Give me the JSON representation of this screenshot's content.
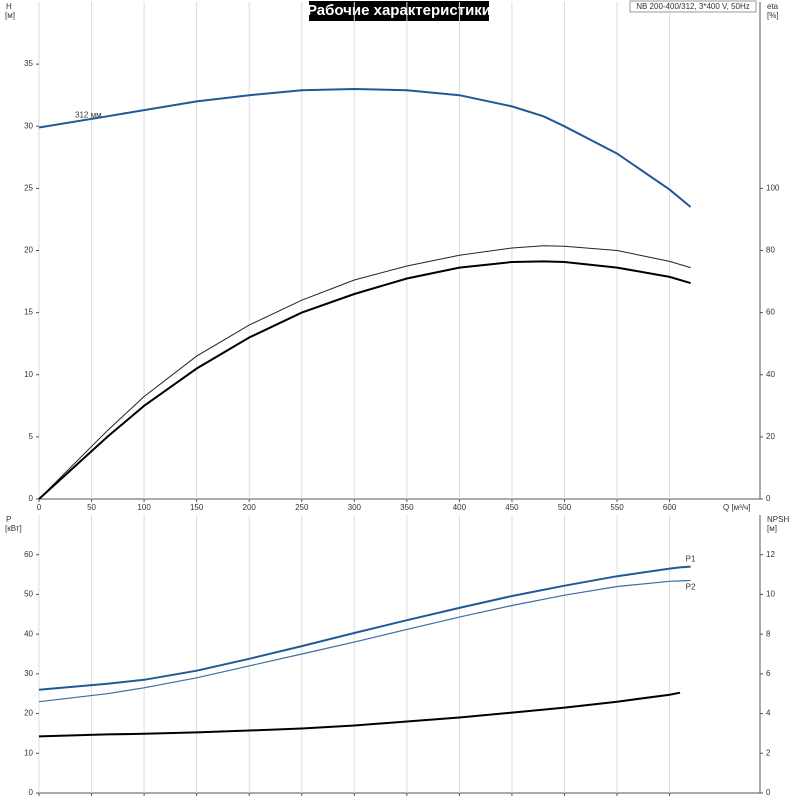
{
  "chart_data": [
    {
      "type": "line",
      "title": "Рабочие характеристики",
      "subtitle": "NB 200-400/312, 3*400 V, 50Hz",
      "xlabel": "Q [м³/ч]",
      "ylabel": "H",
      "yunit": "[м]",
      "y2label": "eta",
      "y2unit": "[%]",
      "xlim": [
        0,
        686
      ],
      "xticks": [
        0,
        50,
        100,
        150,
        200,
        250,
        300,
        350,
        400,
        450,
        500,
        550,
        600
      ],
      "ylim": [
        0,
        40
      ],
      "yticks": [
        0,
        5,
        10,
        15,
        20,
        25,
        30,
        35
      ],
      "y2lim": [
        0,
        160
      ],
      "y2ticks": [
        0,
        20,
        40,
        60,
        80,
        100
      ],
      "grid": "x",
      "name_position": "start",
      "x": [
        0,
        65,
        100,
        150,
        200,
        250,
        300,
        350,
        400,
        450,
        480,
        500,
        550,
        600,
        620
      ],
      "series": [
        {
          "name": "312 мм",
          "color": "#1f5a96",
          "width": 2,
          "values": [
            29.9,
            30.8,
            31.3,
            32.0,
            32.5,
            32.9,
            33.0,
            32.9,
            32.5,
            31.6,
            30.8,
            30.0,
            27.8,
            24.9,
            23.5
          ]
        },
        {
          "color": "#222222",
          "width": 1,
          "axis": "y2",
          "values": [
            0,
            22,
            33,
            46,
            56,
            64,
            70.5,
            75,
            78.5,
            80.8,
            81.5,
            81.4,
            80,
            76.5,
            74.5
          ]
        },
        {
          "color": "#000000",
          "width": 2,
          "axis": "y2",
          "values": [
            0,
            20,
            30,
            42,
            52,
            60,
            66,
            71,
            74.5,
            76.3,
            76.5,
            76.3,
            74.5,
            71.5,
            69.5
          ]
        }
      ]
    },
    {
      "type": "line",
      "ylabel": "P",
      "yunit": "[кВт]",
      "y2label": "NPSH",
      "y2unit": "[м]",
      "xlim": [
        0,
        686
      ],
      "xticks": [
        0,
        50,
        100,
        150,
        200,
        250,
        300,
        350,
        400,
        450,
        500,
        550,
        600
      ],
      "ylim": [
        0,
        70
      ],
      "yticks": [
        0,
        10,
        20,
        30,
        40,
        50,
        60
      ],
      "y2lim": [
        0,
        14
      ],
      "y2ticks": [
        0,
        2,
        4,
        6,
        8,
        10,
        12
      ],
      "grid": "x",
      "name_position": "end",
      "x": [
        0,
        65,
        100,
        150,
        200,
        250,
        300,
        350,
        400,
        450,
        500,
        550,
        600,
        610,
        620
      ],
      "series": [
        {
          "name": "P1",
          "color": "#1f5a96",
          "width": 2,
          "values": [
            26,
            27.5,
            28.5,
            30.8,
            33.8,
            37,
            40.3,
            43.5,
            46.6,
            49.6,
            52.2,
            54.6,
            56.5,
            56.8,
            57
          ]
        },
        {
          "name": "P2",
          "color": "#3a6ea5",
          "width": 1.2,
          "values": [
            23,
            25,
            26.5,
            29,
            32,
            35,
            38,
            41.2,
            44.3,
            47.2,
            49.8,
            52,
            53.3,
            53.4,
            53.5
          ]
        },
        {
          "color": "#000000",
          "width": 2,
          "axis": "y2",
          "values": [
            2.85,
            2.95,
            2.98,
            3.05,
            3.15,
            3.25,
            3.4,
            3.6,
            3.8,
            4.05,
            4.3,
            4.6,
            4.95,
            5.05,
            null
          ]
        }
      ]
    }
  ]
}
